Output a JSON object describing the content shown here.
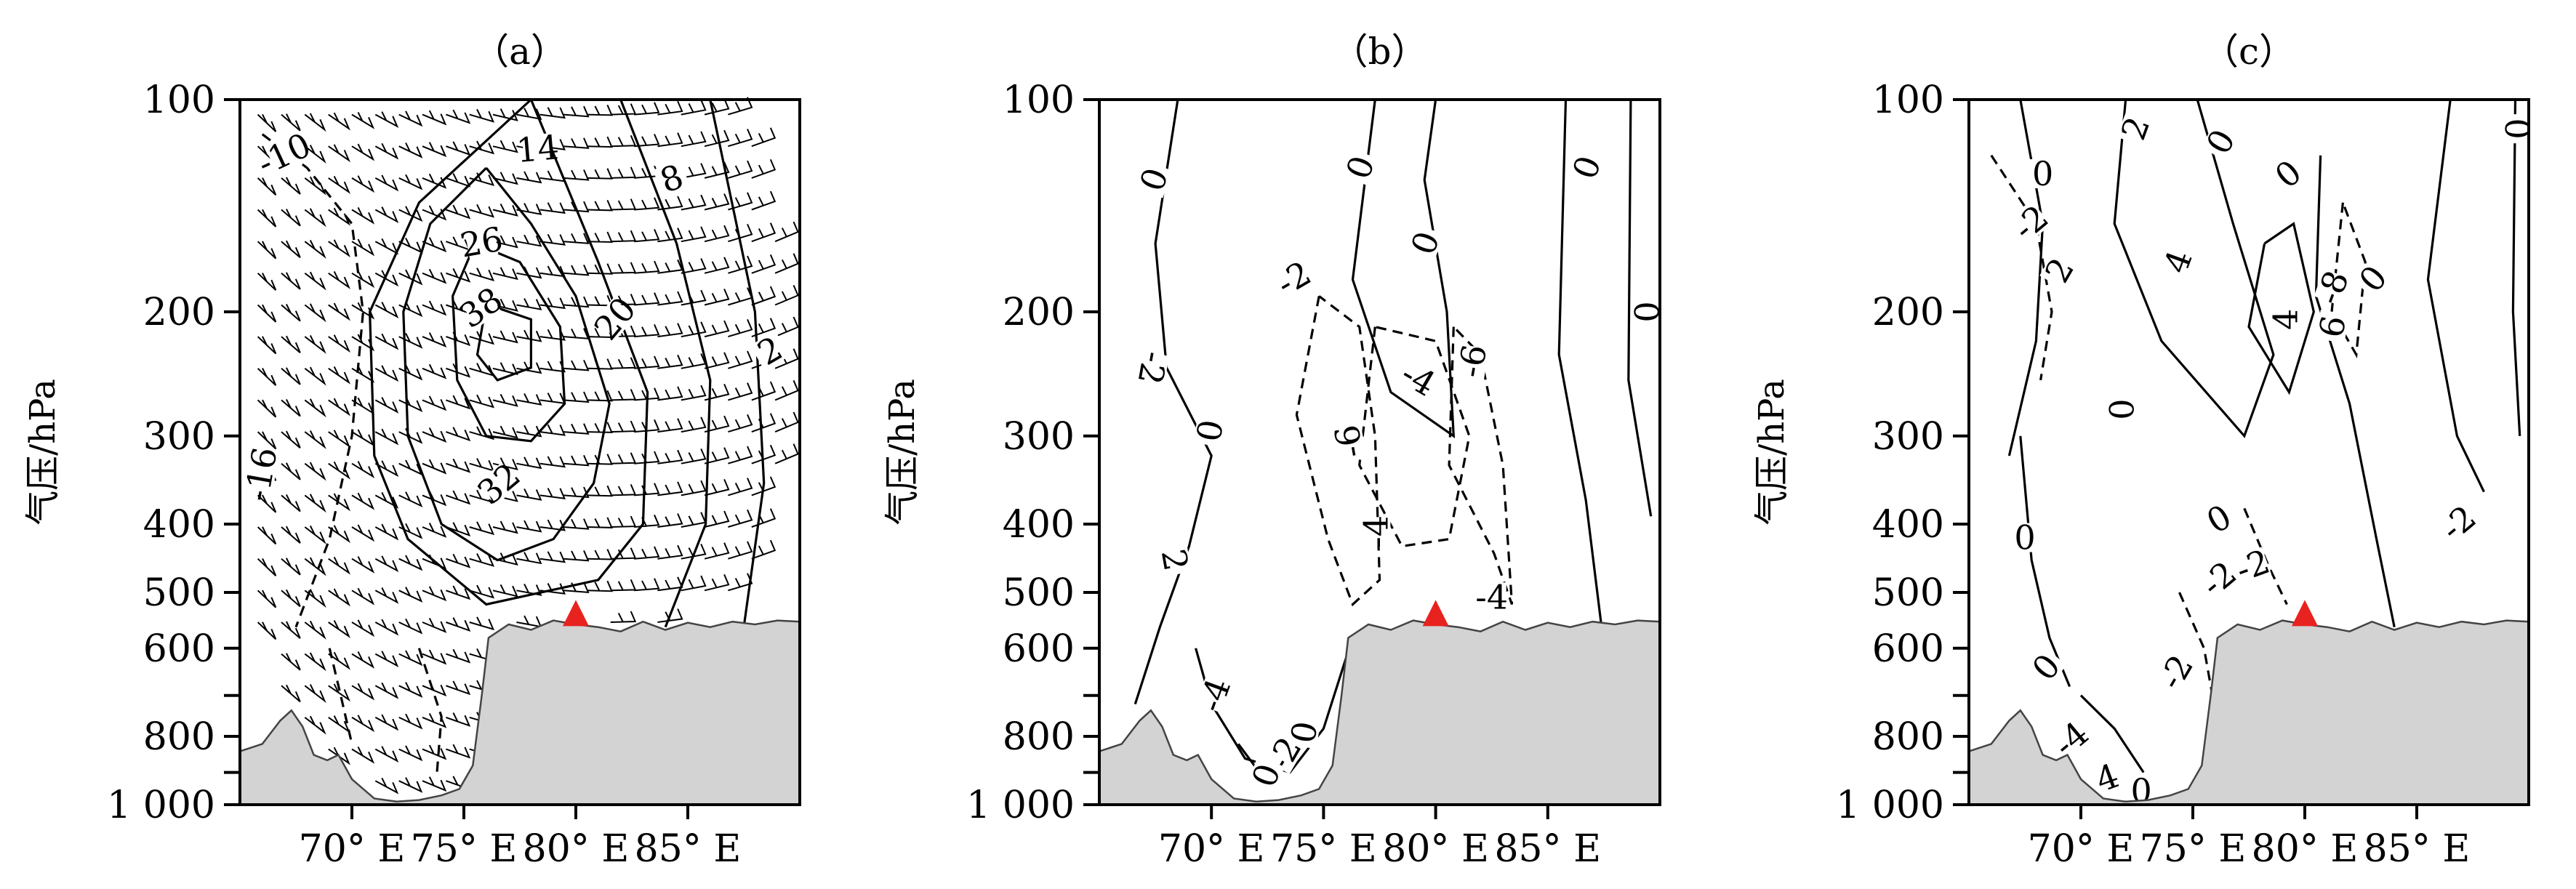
{
  "colors": {
    "terrain_fill": "#d3d3d3",
    "terrain_edge": "#444444",
    "contour": "#000000",
    "marker": "#e8231f"
  },
  "chart_data": [
    {
      "type": "contour",
      "panel_label": "（a）",
      "ylabel": "气压/hPa",
      "y_scale": "log",
      "ylim": [
        1000,
        100
      ],
      "yticks": [
        100,
        200,
        300,
        400,
        500,
        600,
        800,
        1000
      ],
      "ytick_labels": [
        "100",
        "200",
        "300",
        "400",
        "500",
        "600",
        "800",
        "1 000"
      ],
      "minor_yticks": [
        700,
        900
      ],
      "xlim": [
        65,
        90
      ],
      "xticks": [
        70,
        75,
        80,
        85
      ],
      "xtick_labels": [
        "70° E",
        "75° E",
        "80° E",
        "85° E"
      ],
      "overlay": "wind barbs",
      "marker": {
        "shape": "triangle",
        "x": 80,
        "y": 540
      },
      "contour_labels": [
        {
          "text": "-10",
          "x": 67,
          "y": 120,
          "angle": -25
        },
        {
          "text": "14",
          "x": 78.3,
          "y": 118,
          "angle": -5
        },
        {
          "text": "8",
          "x": 84.3,
          "y": 130,
          "angle": -20
        },
        {
          "text": "26",
          "x": 75.8,
          "y": 160,
          "angle": -10
        },
        {
          "text": "38",
          "x": 75.8,
          "y": 198,
          "angle": -35
        },
        {
          "text": "20",
          "x": 81.8,
          "y": 205,
          "angle": -50
        },
        {
          "text": "2",
          "x": 88.7,
          "y": 228,
          "angle": -30
        },
        {
          "text": "-16",
          "x": 66,
          "y": 340,
          "angle": -80
        },
        {
          "text": "32",
          "x": 76.6,
          "y": 352,
          "angle": -40
        }
      ]
    },
    {
      "type": "contour",
      "panel_label": "（b）",
      "ylabel": "气压/hPa",
      "y_scale": "log",
      "ylim": [
        1000,
        100
      ],
      "yticks": [
        100,
        200,
        300,
        400,
        500,
        600,
        800,
        1000
      ],
      "ytick_labels": [
        "100",
        "200",
        "300",
        "400",
        "500",
        "600",
        "800",
        "1 000"
      ],
      "minor_yticks": [
        700,
        900
      ],
      "xlim": [
        65,
        90
      ],
      "xticks": [
        70,
        75,
        80,
        85
      ],
      "xtick_labels": [
        "70° E",
        "75° E",
        "80° E",
        "85° E"
      ],
      "marker": {
        "shape": "triangle",
        "x": 80,
        "y": 540
      },
      "contour_labels": [
        {
          "text": "0",
          "x": 67.5,
          "y": 130,
          "angle": -70
        },
        {
          "text": "0",
          "x": 76.7,
          "y": 125,
          "angle": -70
        },
        {
          "text": "0",
          "x": 86.8,
          "y": 125,
          "angle": -70
        },
        {
          "text": "0",
          "x": 79.6,
          "y": 160,
          "angle": -70
        },
        {
          "text": "-2",
          "x": 73.7,
          "y": 180,
          "angle": -30
        },
        {
          "text": "0",
          "x": 89.5,
          "y": 200,
          "angle": -90
        },
        {
          "text": "-2",
          "x": 67.3,
          "y": 240,
          "angle": 100
        },
        {
          "text": "-4",
          "x": 79.2,
          "y": 250,
          "angle": 30
        },
        {
          "text": "-6",
          "x": 81.7,
          "y": 235,
          "angle": -80
        },
        {
          "text": "0",
          "x": 70,
          "y": 295,
          "angle": -80
        },
        {
          "text": "-6",
          "x": 76.2,
          "y": 305,
          "angle": -100
        },
        {
          "text": "-4",
          "x": 77.4,
          "y": 410,
          "angle": -90
        },
        {
          "text": "2",
          "x": 68.3,
          "y": 450,
          "angle": 80
        },
        {
          "text": "-4",
          "x": 82.5,
          "y": 510,
          "angle": 0
        },
        {
          "text": "-4",
          "x": 70.2,
          "y": 700,
          "angle": -70
        },
        {
          "text": "0",
          "x": 74.2,
          "y": 790,
          "angle": -80
        },
        {
          "text": "-2",
          "x": 73.3,
          "y": 850,
          "angle": -60
        },
        {
          "text": "0",
          "x": 72.5,
          "y": 910,
          "angle": -70
        }
      ]
    },
    {
      "type": "contour",
      "panel_label": "（c）",
      "ylabel": "气压/hPa",
      "y_scale": "log",
      "ylim": [
        1000,
        100
      ],
      "yticks": [
        100,
        200,
        300,
        400,
        500,
        600,
        800,
        1000
      ],
      "ytick_labels": [
        "100",
        "200",
        "300",
        "400",
        "500",
        "600",
        "800",
        "1 000"
      ],
      "minor_yticks": [
        700,
        900
      ],
      "xlim": [
        65,
        90
      ],
      "xticks": [
        70,
        75,
        80,
        85
      ],
      "xtick_labels": [
        "70° E",
        "75° E",
        "80° E",
        "85° E"
      ],
      "marker": {
        "shape": "triangle",
        "x": 80,
        "y": 540
      },
      "contour_labels": [
        {
          "text": "2",
          "x": 72.5,
          "y": 110,
          "angle": -70
        },
        {
          "text": "0",
          "x": 76.3,
          "y": 115,
          "angle": -60
        },
        {
          "text": "0",
          "x": 68.3,
          "y": 128,
          "angle": 0
        },
        {
          "text": "0",
          "x": 79.3,
          "y": 128,
          "angle": -40
        },
        {
          "text": "0",
          "x": 89.6,
          "y": 110,
          "angle": -90
        },
        {
          "text": "-2",
          "x": 67.8,
          "y": 150,
          "angle": -40
        },
        {
          "text": "2",
          "x": 69.1,
          "y": 175,
          "angle": -60
        },
        {
          "text": "4",
          "x": 74.4,
          "y": 170,
          "angle": -70
        },
        {
          "text": "-8",
          "x": 81.3,
          "y": 185,
          "angle": -70
        },
        {
          "text": "0",
          "x": 83.1,
          "y": 180,
          "angle": -50
        },
        {
          "text": "4",
          "x": 79.2,
          "y": 205,
          "angle": -90
        },
        {
          "text": "6",
          "x": 81.3,
          "y": 210,
          "angle": -80
        },
        {
          "text": "0",
          "x": 71.9,
          "y": 275,
          "angle": -90
        },
        {
          "text": "0",
          "x": 76.2,
          "y": 395,
          "angle": -30
        },
        {
          "text": "-2",
          "x": 77.7,
          "y": 460,
          "angle": -20
        },
        {
          "text": "-2",
          "x": 86.9,
          "y": 400,
          "angle": -40
        },
        {
          "text": "0",
          "x": 67.5,
          "y": 420,
          "angle": 0
        },
        {
          "text": "-2",
          "x": 76.2,
          "y": 480,
          "angle": -40
        },
        {
          "text": "0",
          "x": 68.5,
          "y": 640,
          "angle": -50
        },
        {
          "text": "-2",
          "x": 74.3,
          "y": 650,
          "angle": -60
        },
        {
          "text": "-4",
          "x": 69.6,
          "y": 810,
          "angle": -40
        },
        {
          "text": "4",
          "x": 71.2,
          "y": 920,
          "angle": -20
        },
        {
          "text": "0",
          "x": 72.7,
          "y": 960,
          "angle": 0
        }
      ]
    }
  ]
}
